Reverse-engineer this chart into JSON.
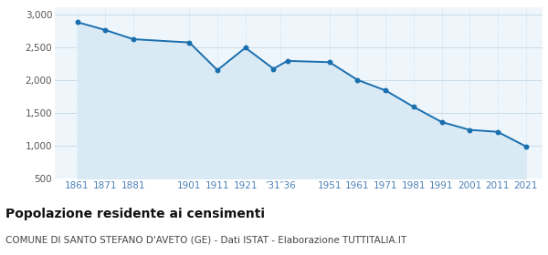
{
  "years": [
    1861,
    1871,
    1881,
    1901,
    1911,
    1921,
    1931,
    1936,
    1951,
    1961,
    1971,
    1981,
    1991,
    2001,
    2011,
    2021
  ],
  "population": [
    2880,
    2760,
    2620,
    2570,
    2150,
    2490,
    2170,
    2290,
    2270,
    2000,
    1840,
    1590,
    1360,
    1240,
    1210,
    990
  ],
  "line_color": "#1a6fae",
  "fill_color": "#daeaf5",
  "marker_color": "#1a6fae",
  "bg_color": "#eef6fc",
  "grid_color": "#c8dcea",
  "ylim": [
    500,
    3100
  ],
  "yticks": [
    500,
    1000,
    1500,
    2000,
    2500,
    3000
  ],
  "title": "Popolazione residente ai censimenti",
  "subtitle": "COMUNE DI SANTO STEFANO D'AVETO (GE) - Dati ISTAT - Elaborazione TUTTITALIA.IT",
  "title_fontsize": 10,
  "subtitle_fontsize": 7.5,
  "x_tick_color": "#4a80b8",
  "y_tick_color": "#555555",
  "tick_fontsize": 7.5,
  "xlim_left": 1853,
  "xlim_right": 2027
}
